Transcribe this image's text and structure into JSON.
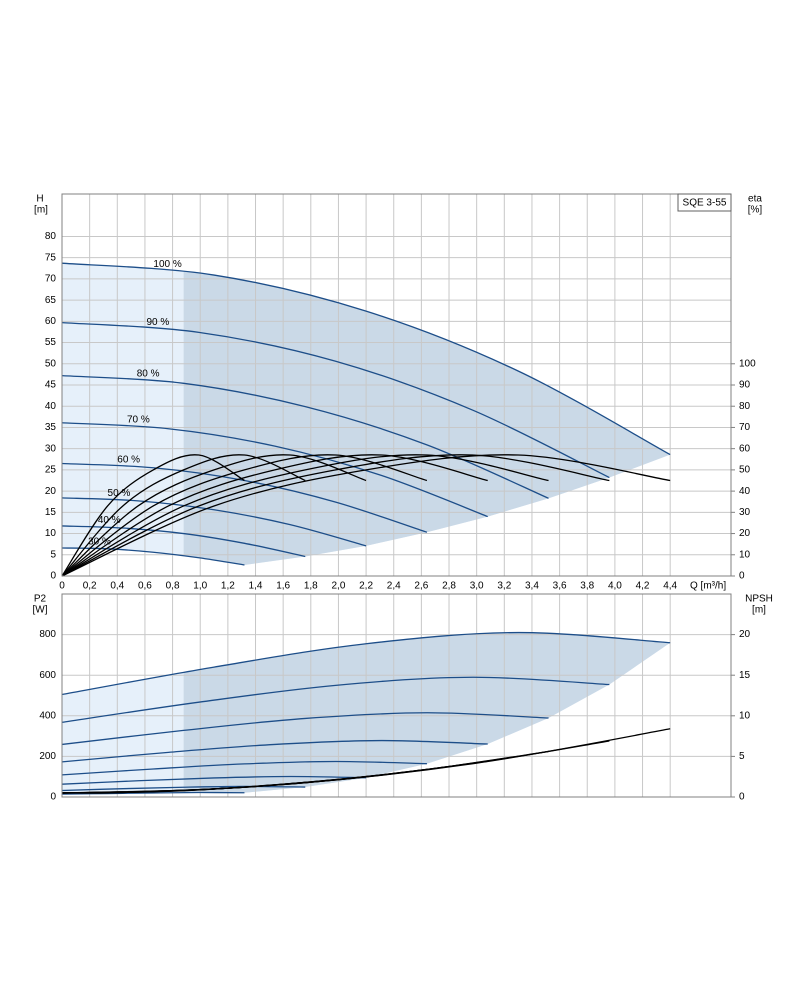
{
  "chart_data": [
    {
      "type": "line",
      "title": "SQE 3-55",
      "x_label": "Q [m³/h]",
      "y_label": "H",
      "y_unit": "[m]",
      "y2_label": "eta",
      "y2_unit": "[%]",
      "xlim": [
        0,
        4.84
      ],
      "ylim": [
        0,
        90
      ],
      "y2lim": [
        0,
        180
      ],
      "min_q": 0.88,
      "grid": true,
      "xticks": [
        0,
        {
          "value": 0.2,
          "label": "0,2"
        },
        {
          "value": 0.4,
          "label": "0,4"
        },
        {
          "value": 0.6,
          "label": "0,6"
        },
        {
          "value": 0.8,
          "label": "0,8"
        },
        {
          "value": 1,
          "label": "1,0"
        },
        {
          "value": 1.2,
          "label": "1,2"
        },
        {
          "value": 1.4,
          "label": "1,4"
        },
        {
          "value": 1.6,
          "label": "1,6"
        },
        {
          "value": 1.8,
          "label": "1,8"
        },
        {
          "value": 2,
          "label": "2,0"
        },
        {
          "value": 2.2,
          "label": "2,2"
        },
        {
          "value": 2.4,
          "label": "2,4"
        },
        {
          "value": 2.6,
          "label": "2,6"
        },
        {
          "value": 2.8,
          "label": "2,8"
        },
        {
          "value": 3,
          "label": "3,0"
        },
        {
          "value": 3.2,
          "label": "3,2"
        },
        {
          "value": 3.4,
          "label": "3,4"
        },
        {
          "value": 3.6,
          "label": "3,6"
        },
        {
          "value": 3.8,
          "label": "3,8"
        },
        {
          "value": 4,
          "label": "4,0"
        },
        {
          "value": 4.2,
          "label": "4,2"
        },
        {
          "value": 4.4,
          "label": "4,4"
        }
      ],
      "yticks": [
        0,
        5,
        10,
        15,
        20,
        25,
        30,
        35,
        40,
        45,
        50,
        55,
        60,
        65,
        70,
        75,
        80
      ],
      "y2ticks": [
        0,
        10,
        20,
        30,
        40,
        50,
        60,
        70,
        80,
        90,
        100
      ],
      "series": [
        {
          "name": "100 %",
          "color": "#1d4e89",
          "x": [
            0,
            1.1,
            2.2,
            3.3,
            4.4
          ],
          "values": [
            73.7,
            70.9,
            62.4,
            48.3,
            28.6
          ]
        },
        {
          "name": "90 %",
          "color": "#1d4e89",
          "x": [
            0,
            0.99,
            1.98,
            2.97,
            3.96
          ],
          "values": [
            59.7,
            57.4,
            50.6,
            39.1,
            23.2
          ]
        },
        {
          "name": "80 %",
          "color": "#1d4e89",
          "x": [
            0,
            0.88,
            1.76,
            2.64,
            3.52
          ],
          "values": [
            47.2,
            45.4,
            39.9,
            30.9,
            18.3
          ]
        },
        {
          "name": "70 %",
          "color": "#1d4e89",
          "x": [
            0,
            0.77,
            1.54,
            2.31,
            3.08
          ],
          "values": [
            36.1,
            34.7,
            30.6,
            23.7,
            14.0
          ]
        },
        {
          "name": "60 %",
          "color": "#1d4e89",
          "x": [
            0,
            0.66,
            1.32,
            1.98,
            2.64
          ],
          "values": [
            26.5,
            25.5,
            22.5,
            17.4,
            10.3
          ]
        },
        {
          "name": "50 %",
          "color": "#1d4e89",
          "x": [
            0,
            0.55,
            1.1,
            1.65,
            2.2
          ],
          "values": [
            18.4,
            17.7,
            15.6,
            12.1,
            7.1
          ]
        },
        {
          "name": "40 %",
          "color": "#1d4e89",
          "x": [
            0,
            0.44,
            0.88,
            1.32,
            1.76
          ],
          "values": [
            11.8,
            11.3,
            10.0,
            7.7,
            4.6
          ]
        },
        {
          "name": "30 %",
          "color": "#1d4e89",
          "x": [
            0,
            0.33,
            0.66,
            0.99,
            1.32
          ],
          "values": [
            6.6,
            6.4,
            5.6,
            4.3,
            2.6
          ]
        },
        {
          "color": "#000000",
          "axis": "y2",
          "x": [
            0,
            1.1,
            2.2,
            3.3,
            4.4
          ],
          "values": [
            0,
            33,
            50,
            57,
            45
          ]
        },
        {
          "color": "#000000",
          "axis": "y2",
          "x": [
            0,
            0.99,
            1.98,
            2.97,
            3.96
          ],
          "values": [
            0,
            33,
            50,
            57,
            45
          ]
        },
        {
          "color": "#000000",
          "axis": "y2",
          "x": [
            0,
            0.88,
            1.76,
            2.64,
            3.52
          ],
          "values": [
            0,
            33,
            50,
            57,
            45
          ]
        },
        {
          "color": "#000000",
          "axis": "y2",
          "x": [
            0,
            0.77,
            1.54,
            2.31,
            3.08
          ],
          "values": [
            0,
            33,
            50,
            57,
            45
          ]
        },
        {
          "color": "#000000",
          "axis": "y2",
          "x": [
            0,
            0.66,
            1.32,
            1.98,
            2.64
          ],
          "values": [
            0,
            33,
            50,
            57,
            45
          ]
        },
        {
          "color": "#000000",
          "axis": "y2",
          "x": [
            0,
            0.55,
            1.1,
            1.65,
            2.2
          ],
          "values": [
            0,
            33,
            50,
            57,
            45
          ]
        },
        {
          "color": "#000000",
          "axis": "y2",
          "x": [
            0,
            0.44,
            0.88,
            1.32,
            1.76
          ],
          "values": [
            0,
            33,
            50,
            57,
            45
          ]
        },
        {
          "color": "#000000",
          "axis": "y2",
          "x": [
            0,
            0.33,
            0.66,
            0.99,
            1.32
          ],
          "values": [
            0,
            33,
            50,
            57,
            45
          ]
        }
      ]
    },
    {
      "type": "line",
      "y_label": "P2",
      "y_unit": "[W]",
      "y2_label": "NPSH",
      "y2_unit": "[m]",
      "xlim": [
        0,
        4.84
      ],
      "ylim": [
        0,
        1000
      ],
      "y2lim": [
        0,
        25
      ],
      "min_q": 0.88,
      "grid": true,
      "yticks": [
        0,
        200,
        400,
        600,
        800
      ],
      "y2ticks": [
        0,
        5,
        10,
        15,
        20
      ],
      "series": [
        {
          "color": "#1d4e89",
          "x": [
            0,
            1.1,
            2.2,
            3.3,
            4.4
          ],
          "values": [
            505,
            640,
            755,
            810,
            760
          ]
        },
        {
          "color": "#1d4e89",
          "x": [
            0,
            0.99,
            1.98,
            2.97,
            3.96
          ],
          "values": [
            368,
            467,
            550,
            590,
            554
          ]
        },
        {
          "color": "#1d4e89",
          "x": [
            0,
            0.88,
            1.76,
            2.64,
            3.52
          ],
          "values": [
            259,
            328,
            387,
            415,
            389
          ]
        },
        {
          "color": "#1d4e89",
          "x": [
            0,
            0.77,
            1.54,
            2.31,
            3.08
          ],
          "values": [
            173,
            220,
            259,
            278,
            261
          ]
        },
        {
          "color": "#1d4e89",
          "x": [
            0,
            0.66,
            1.32,
            1.98,
            2.64
          ],
          "values": [
            109,
            138,
            163,
            175,
            164
          ]
        },
        {
          "color": "#1d4e89",
          "x": [
            0,
            0.55,
            1.1,
            1.65,
            2.2
          ],
          "values": [
            63,
            80,
            94,
            101,
            95
          ]
        },
        {
          "color": "#1d4e89",
          "x": [
            0,
            0.44,
            0.88,
            1.32,
            1.76
          ],
          "values": [
            32,
            41,
            48,
            52,
            49
          ]
        },
        {
          "color": "#1d4e89",
          "x": [
            0,
            0.33,
            0.66,
            0.99,
            1.32
          ],
          "values": [
            14,
            17,
            20,
            22,
            21
          ]
        },
        {
          "color": "#000000",
          "axis": "y2",
          "x": [
            0,
            1.1,
            2.2,
            3.3,
            4.4
          ],
          "values": [
            0.5,
            1.0,
            2.5,
            5.0,
            8.4
          ]
        },
        {
          "color": "#000000",
          "axis": "y2",
          "x": [
            0,
            0.99,
            1.98,
            2.97,
            3.96
          ],
          "values": [
            0.5,
            0.9,
            2.1,
            4.1,
            6.9
          ]
        },
        {
          "color": "#000000",
          "axis": "y2",
          "x": [
            0,
            0.88,
            1.76,
            2.64,
            3.52
          ],
          "values": [
            0.5,
            0.8,
            1.8,
            3.4,
            5.6
          ]
        },
        {
          "color": "#000000",
          "axis": "y2",
          "x": [
            0,
            0.77,
            1.54,
            2.31,
            3.08
          ],
          "values": [
            0.5,
            0.7,
            1.5,
            2.7,
            4.4
          ]
        },
        {
          "color": "#000000",
          "axis": "y2",
          "x": [
            0,
            0.66,
            1.32,
            1.98,
            2.64
          ],
          "values": [
            0.5,
            0.7,
            1.2,
            2.1,
            3.4
          ]
        },
        {
          "color": "#000000",
          "axis": "y2",
          "x": [
            0,
            0.55,
            1.1,
            1.65,
            2.2
          ],
          "values": [
            0.5,
            0.6,
            1.0,
            1.6,
            2.5
          ]
        },
        {
          "color": "#000000",
          "axis": "y2",
          "x": [
            0,
            0.44,
            0.88,
            1.32,
            1.76
          ],
          "values": [
            0.5,
            0.6,
            0.8,
            1.2,
            1.8
          ]
        },
        {
          "color": "#000000",
          "axis": "y2",
          "x": [
            0,
            0.33,
            0.66,
            0.99,
            1.32
          ],
          "values": [
            0.5,
            0.5,
            0.7,
            0.9,
            1.2
          ]
        }
      ]
    }
  ]
}
